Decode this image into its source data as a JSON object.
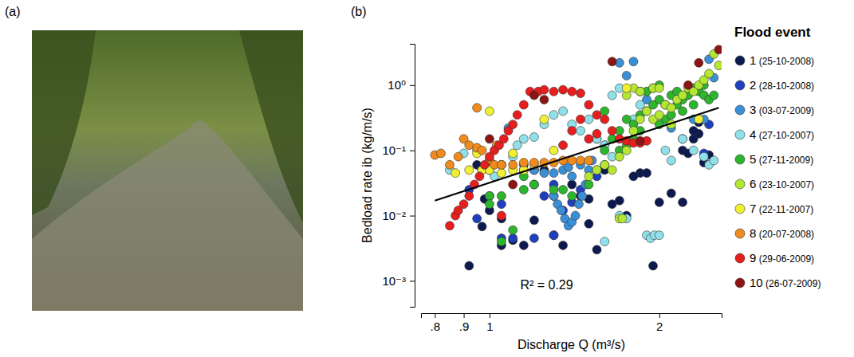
{
  "photo": {
    "panel": "(a)"
  },
  "chart_data": {
    "type": "scatter",
    "panel": "(b)",
    "xlabel": "Discharge Q (m³/s)",
    "ylabel": "Bedload rate ib (kg/m/s)",
    "log": true,
    "grid": false,
    "legend": "right",
    "legend_title": "Flood event",
    "marker": "circle",
    "xlim": [
      0.756,
      2.58
    ],
    "ylim": [
      0.0004,
      4.3
    ],
    "xticks": [
      {
        "value": 0.8,
        "label": ".8"
      },
      {
        "value": 0.9,
        "label": ".9"
      },
      1,
      2
    ],
    "yticks": [
      {
        "value": 0.001,
        "label": "10⁻³"
      },
      {
        "value": 0.01,
        "label": "10⁻²"
      },
      {
        "value": 0.1,
        "label": "10⁻¹"
      },
      {
        "value": 1,
        "label": "10⁰"
      }
    ],
    "fit": {
      "x": [
        0.8,
        2.55
      ],
      "values": [
        0.017,
        0.45
      ],
      "label": "R² = 0.29"
    },
    "series": [
      {
        "name": "1 (25-10-2008)",
        "color": "#0d1a4f",
        "x": [
          0.92,
          0.97,
          1.05,
          1.1,
          1.15,
          1.2,
          1.35,
          1.5,
          1.5,
          1.45,
          1.4,
          1.3,
          1.3,
          1.0,
          0.95,
          1.25,
          1.6,
          1.7,
          1.75,
          1.85,
          1.9,
          1.95,
          2.0,
          2.1,
          2.2,
          2.25,
          2.3,
          2.35,
          2.4,
          2.45,
          2.3,
          2.35,
          1.55,
          1.8,
          1.2,
          1.05,
          1.0,
          0.98,
          2.2,
          1.65
        ],
        "values": [
          0.0017,
          0.0068,
          0.0035,
          0.0042,
          0.0035,
          0.0085,
          0.0035,
          0.0075,
          0.018,
          0.02,
          0.03,
          0.02,
          0.005,
          0.05,
          0.06,
          0.05,
          0.05,
          0.017,
          0.01,
          0.045,
          0.045,
          0.0017,
          0.016,
          0.022,
          0.1,
          0.09,
          0.15,
          0.18,
          0.065,
          0.085,
          0.2,
          0.27,
          0.003,
          0.04,
          0.03,
          0.009,
          0.012,
          0.018,
          0.016,
          0.015
        ]
      },
      {
        "name": "2 (28-10-2008)",
        "color": "#1f3fbf",
        "x": [
          1.05,
          1.1,
          1.2,
          1.3,
          1.0,
          0.95,
          1.05,
          1.25,
          1.3,
          1.4,
          1.45,
          1.55,
          1.6,
          0.92,
          1.15,
          1.2,
          2.45,
          2.4,
          1.35
        ],
        "values": [
          0.0045,
          0.0045,
          0.0045,
          0.005,
          0.02,
          0.009,
          0.015,
          0.02,
          0.03,
          0.016,
          0.025,
          0.04,
          0.06,
          0.025,
          0.06,
          0.05,
          0.25,
          0.09,
          0.012
        ]
      },
      {
        "name": "3 (03-07-2009)",
        "color": "#3a8fd6",
        "x": [
          1.3,
          1.32,
          1.34,
          1.36,
          1.38,
          1.4,
          1.42,
          1.44,
          1.46,
          1.48,
          1.5,
          1.52,
          1.4,
          1.35,
          1.3,
          1.25,
          1.2,
          1.15,
          1.38,
          1.45,
          1.7,
          1.75,
          1.8,
          1.85,
          2.5,
          2.4,
          2.3,
          2.2,
          2.1,
          1.9,
          1.55,
          1.6,
          2.45,
          1.08
        ],
        "values": [
          0.02,
          0.015,
          0.012,
          0.009,
          0.007,
          0.008,
          0.01,
          0.015,
          0.02,
          0.03,
          0.05,
          0.07,
          0.04,
          0.05,
          0.045,
          0.045,
          0.05,
          0.05,
          0.055,
          0.06,
          2.2,
          1.4,
          2.3,
          0.8,
          1.3,
          0.3,
          0.3,
          0.15,
          0.22,
          0.6,
          0.15,
          0.12,
          2.5,
          0.22
        ]
      },
      {
        "name": "4 (27-10-2007)",
        "color": "#8fe0e8",
        "x": [
          0.85,
          0.9,
          0.95,
          1.0,
          1.02,
          1.1,
          1.15,
          1.2,
          1.25,
          1.3,
          1.35,
          1.4,
          1.45,
          1.5,
          1.55,
          1.6,
          1.65,
          1.7,
          1.75,
          1.9,
          1.93,
          1.96,
          2.0,
          2.05,
          2.1,
          2.2,
          2.3,
          2.4,
          2.45,
          2.5,
          1.8,
          1.85,
          1.65,
          1.7,
          1.6,
          1.05,
          0.97,
          1.12
        ],
        "values": [
          0.05,
          0.09,
          0.1,
          0.07,
          0.04,
          0.08,
          0.15,
          0.16,
          0.25,
          0.35,
          0.4,
          0.25,
          0.2,
          0.3,
          0.15,
          0.12,
          0.08,
          0.01,
          0.009,
          0.005,
          0.0045,
          0.005,
          0.005,
          0.1,
          0.07,
          0.15,
          0.1,
          0.08,
          0.06,
          0.07,
          0.3,
          0.5,
          0.7,
          0.9,
          0.004,
          0.06,
          0.05,
          0.12
        ]
      },
      {
        "name": "5 (27-11-2009)",
        "color": "#2db52d",
        "x": [
          1.0,
          1.05,
          1.1,
          1.15,
          1.2,
          1.3,
          1.35,
          1.4,
          1.0,
          1.05,
          1.5,
          1.55,
          1.6,
          1.65,
          1.7,
          1.75,
          1.8,
          1.85,
          1.9,
          1.95,
          2.0,
          2.05,
          2.1,
          2.15,
          2.2,
          2.25,
          2.3,
          2.35,
          2.4,
          2.45,
          2.5,
          1.9,
          1.95,
          2.0,
          2.05,
          2.1,
          2.2,
          1.8,
          1.7,
          1.75,
          2.0,
          2.15,
          1.6,
          1.85,
          2.3,
          2.4,
          1.15
        ],
        "values": [
          0.02,
          0.004,
          0.006,
          0.025,
          0.03,
          0.025,
          0.025,
          0.02,
          0.015,
          0.02,
          0.03,
          0.05,
          0.1,
          0.15,
          0.2,
          0.3,
          0.25,
          0.35,
          0.4,
          0.5,
          0.6,
          0.5,
          0.7,
          0.8,
          0.6,
          0.7,
          0.9,
          0.8,
          0.7,
          0.6,
          0.7,
          0.8,
          0.9,
          1.0,
          0.3,
          0.35,
          0.4,
          0.15,
          0.1,
          0.12,
          0.25,
          0.5,
          0.4,
          0.2,
          0.5,
          1.0,
          0.04
        ]
      },
      {
        "name": "6 (23-10-2007)",
        "color": "#b5e632",
        "x": [
          1.6,
          1.65,
          1.7,
          1.75,
          1.8,
          1.85,
          1.9,
          1.95,
          2.0,
          2.05,
          2.1,
          2.15,
          2.2,
          2.25,
          2.3,
          2.35,
          2.4,
          2.45,
          2.5,
          2.55,
          1.75,
          1.8,
          1.85,
          1.95,
          2.0,
          1.7,
          1.72,
          2.1,
          1.5,
          1.55
        ],
        "values": [
          0.06,
          0.05,
          0.08,
          0.1,
          0.2,
          0.3,
          0.4,
          0.3,
          0.35,
          0.5,
          0.45,
          0.6,
          0.7,
          0.9,
          0.8,
          1.0,
          1.2,
          1.5,
          3.0,
          2.0,
          0.7,
          0.9,
          0.8,
          0.9,
          0.9,
          0.009,
          0.009,
          0.25,
          0.04,
          0.05
        ]
      },
      {
        "name": "7 (22-11-2007)",
        "color": "#f0f032",
        "x": [
          0.87,
          0.92,
          0.97,
          1.0,
          1.05,
          1.1,
          1.15,
          1.2,
          1.25,
          1.0,
          0.95,
          1.1,
          1.3,
          2.35,
          1.75,
          1.05
        ],
        "values": [
          0.045,
          0.05,
          0.05,
          0.05,
          0.06,
          0.05,
          0.05,
          0.06,
          0.3,
          0.4,
          0.09,
          0.09,
          0.1,
          0.3,
          0.9,
          0.045
        ]
      },
      {
        "name": "8 (20-07-2008)",
        "color": "#f08c1e",
        "x": [
          0.8,
          0.82,
          0.85,
          0.88,
          0.9,
          0.92,
          0.95,
          0.97,
          1.0,
          1.02,
          1.05,
          1.1,
          1.15,
          1.2,
          1.25,
          1.3,
          1.35,
          1.4,
          1.45,
          1.5,
          0.95,
          1.03
        ],
        "values": [
          0.085,
          0.09,
          0.06,
          0.08,
          0.15,
          0.12,
          0.11,
          0.1,
          0.07,
          0.06,
          0.06,
          0.06,
          0.065,
          0.065,
          0.065,
          0.065,
          0.07,
          0.07,
          0.07,
          0.07,
          0.45,
          0.12
        ]
      },
      {
        "name": "9 (29-06-2009)",
        "color": "#e61e1e",
        "x": [
          0.85,
          0.87,
          0.88,
          0.9,
          0.92,
          0.94,
          0.96,
          0.98,
          1.0,
          1.02,
          1.04,
          1.06,
          1.08,
          1.1,
          1.12,
          1.15,
          1.18,
          1.22,
          1.25,
          1.3,
          1.35,
          1.4,
          1.45,
          1.5,
          1.55,
          1.6,
          1.65,
          1.7,
          1.75,
          1.8,
          1.85,
          1.9,
          1.45,
          1.5,
          1.4,
          1.35,
          1.55,
          1.05
        ],
        "values": [
          0.007,
          0.01,
          0.012,
          0.015,
          0.02,
          0.03,
          0.04,
          0.06,
          0.08,
          0.1,
          0.12,
          0.15,
          0.2,
          0.25,
          0.35,
          0.5,
          0.8,
          0.8,
          0.85,
          0.8,
          0.85,
          0.8,
          0.75,
          0.5,
          0.35,
          0.3,
          0.2,
          0.15,
          0.14,
          0.13,
          0.13,
          0.14,
          0.3,
          0.15,
          0.2,
          0.12,
          0.18,
          0.01
        ]
      },
      {
        "name": "10 (26-07-2009)",
        "color": "#8c1414",
        "x": [
          1.0,
          1.2,
          1.25,
          1.65,
          2.35,
          2.55,
          2.25,
          1.85,
          1.1
        ],
        "values": [
          0.15,
          0.7,
          0.6,
          2.3,
          2.2,
          3.5,
          1.0,
          0.14,
          0.03
        ]
      }
    ]
  }
}
